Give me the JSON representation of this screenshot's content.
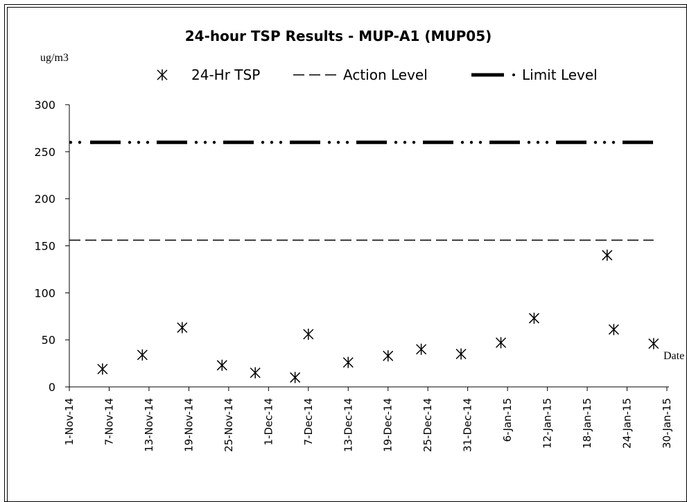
{
  "chart_data": {
    "type": "scatter",
    "title": "24-hour TSP Results - MUP-A1 (MUP05)",
    "ylabel": "ug/m3",
    "xlabel": "Date",
    "ylim": [
      0,
      300
    ],
    "yticks": [
      0,
      50,
      100,
      150,
      200,
      250,
      300
    ],
    "xlim": [
      "2014-11-01",
      "2015-01-30"
    ],
    "xticks": [
      "1-Nov-14",
      "7-Nov-14",
      "13-Nov-14",
      "19-Nov-14",
      "25-Nov-14",
      "1-Dec-14",
      "7-Dec-14",
      "13-Dec-14",
      "19-Dec-14",
      "25-Dec-14",
      "31-Dec-14",
      "6-Jan-15",
      "12-Jan-15",
      "18-Jan-15",
      "24-Jan-15",
      "30-Jan-15"
    ],
    "legend_position": "top",
    "series": [
      {
        "name": "24-Hr TSP",
        "kind": "markers",
        "marker": "asterisk",
        "points": [
          {
            "x": "2014-11-06",
            "y": 19
          },
          {
            "x": "2014-11-12",
            "y": 34
          },
          {
            "x": "2014-11-18",
            "y": 63
          },
          {
            "x": "2014-11-24",
            "y": 23
          },
          {
            "x": "2014-11-29",
            "y": 15
          },
          {
            "x": "2014-12-05",
            "y": 10
          },
          {
            "x": "2014-12-07",
            "y": 56
          },
          {
            "x": "2014-12-13",
            "y": 26
          },
          {
            "x": "2014-12-19",
            "y": 33
          },
          {
            "x": "2014-12-24",
            "y": 40
          },
          {
            "x": "2014-12-30",
            "y": 35
          },
          {
            "x": "2015-01-05",
            "y": 47
          },
          {
            "x": "2015-01-10",
            "y": 73
          },
          {
            "x": "2015-01-21",
            "y": 140
          },
          {
            "x": "2015-01-22",
            "y": 61
          },
          {
            "x": "2015-01-28",
            "y": 46
          }
        ]
      },
      {
        "name": "Action Level",
        "kind": "dashed-line",
        "value": 156,
        "x_range": [
          "2014-11-01",
          "2015-01-28"
        ]
      },
      {
        "name": "Limit Level",
        "kind": "dash-dot-line",
        "value": 260,
        "x_range": [
          "2014-11-01",
          "2015-01-28"
        ]
      }
    ],
    "grid": false,
    "colors": {
      "marks": "#000000",
      "frame": "#000000",
      "background": "#ffffff"
    }
  }
}
